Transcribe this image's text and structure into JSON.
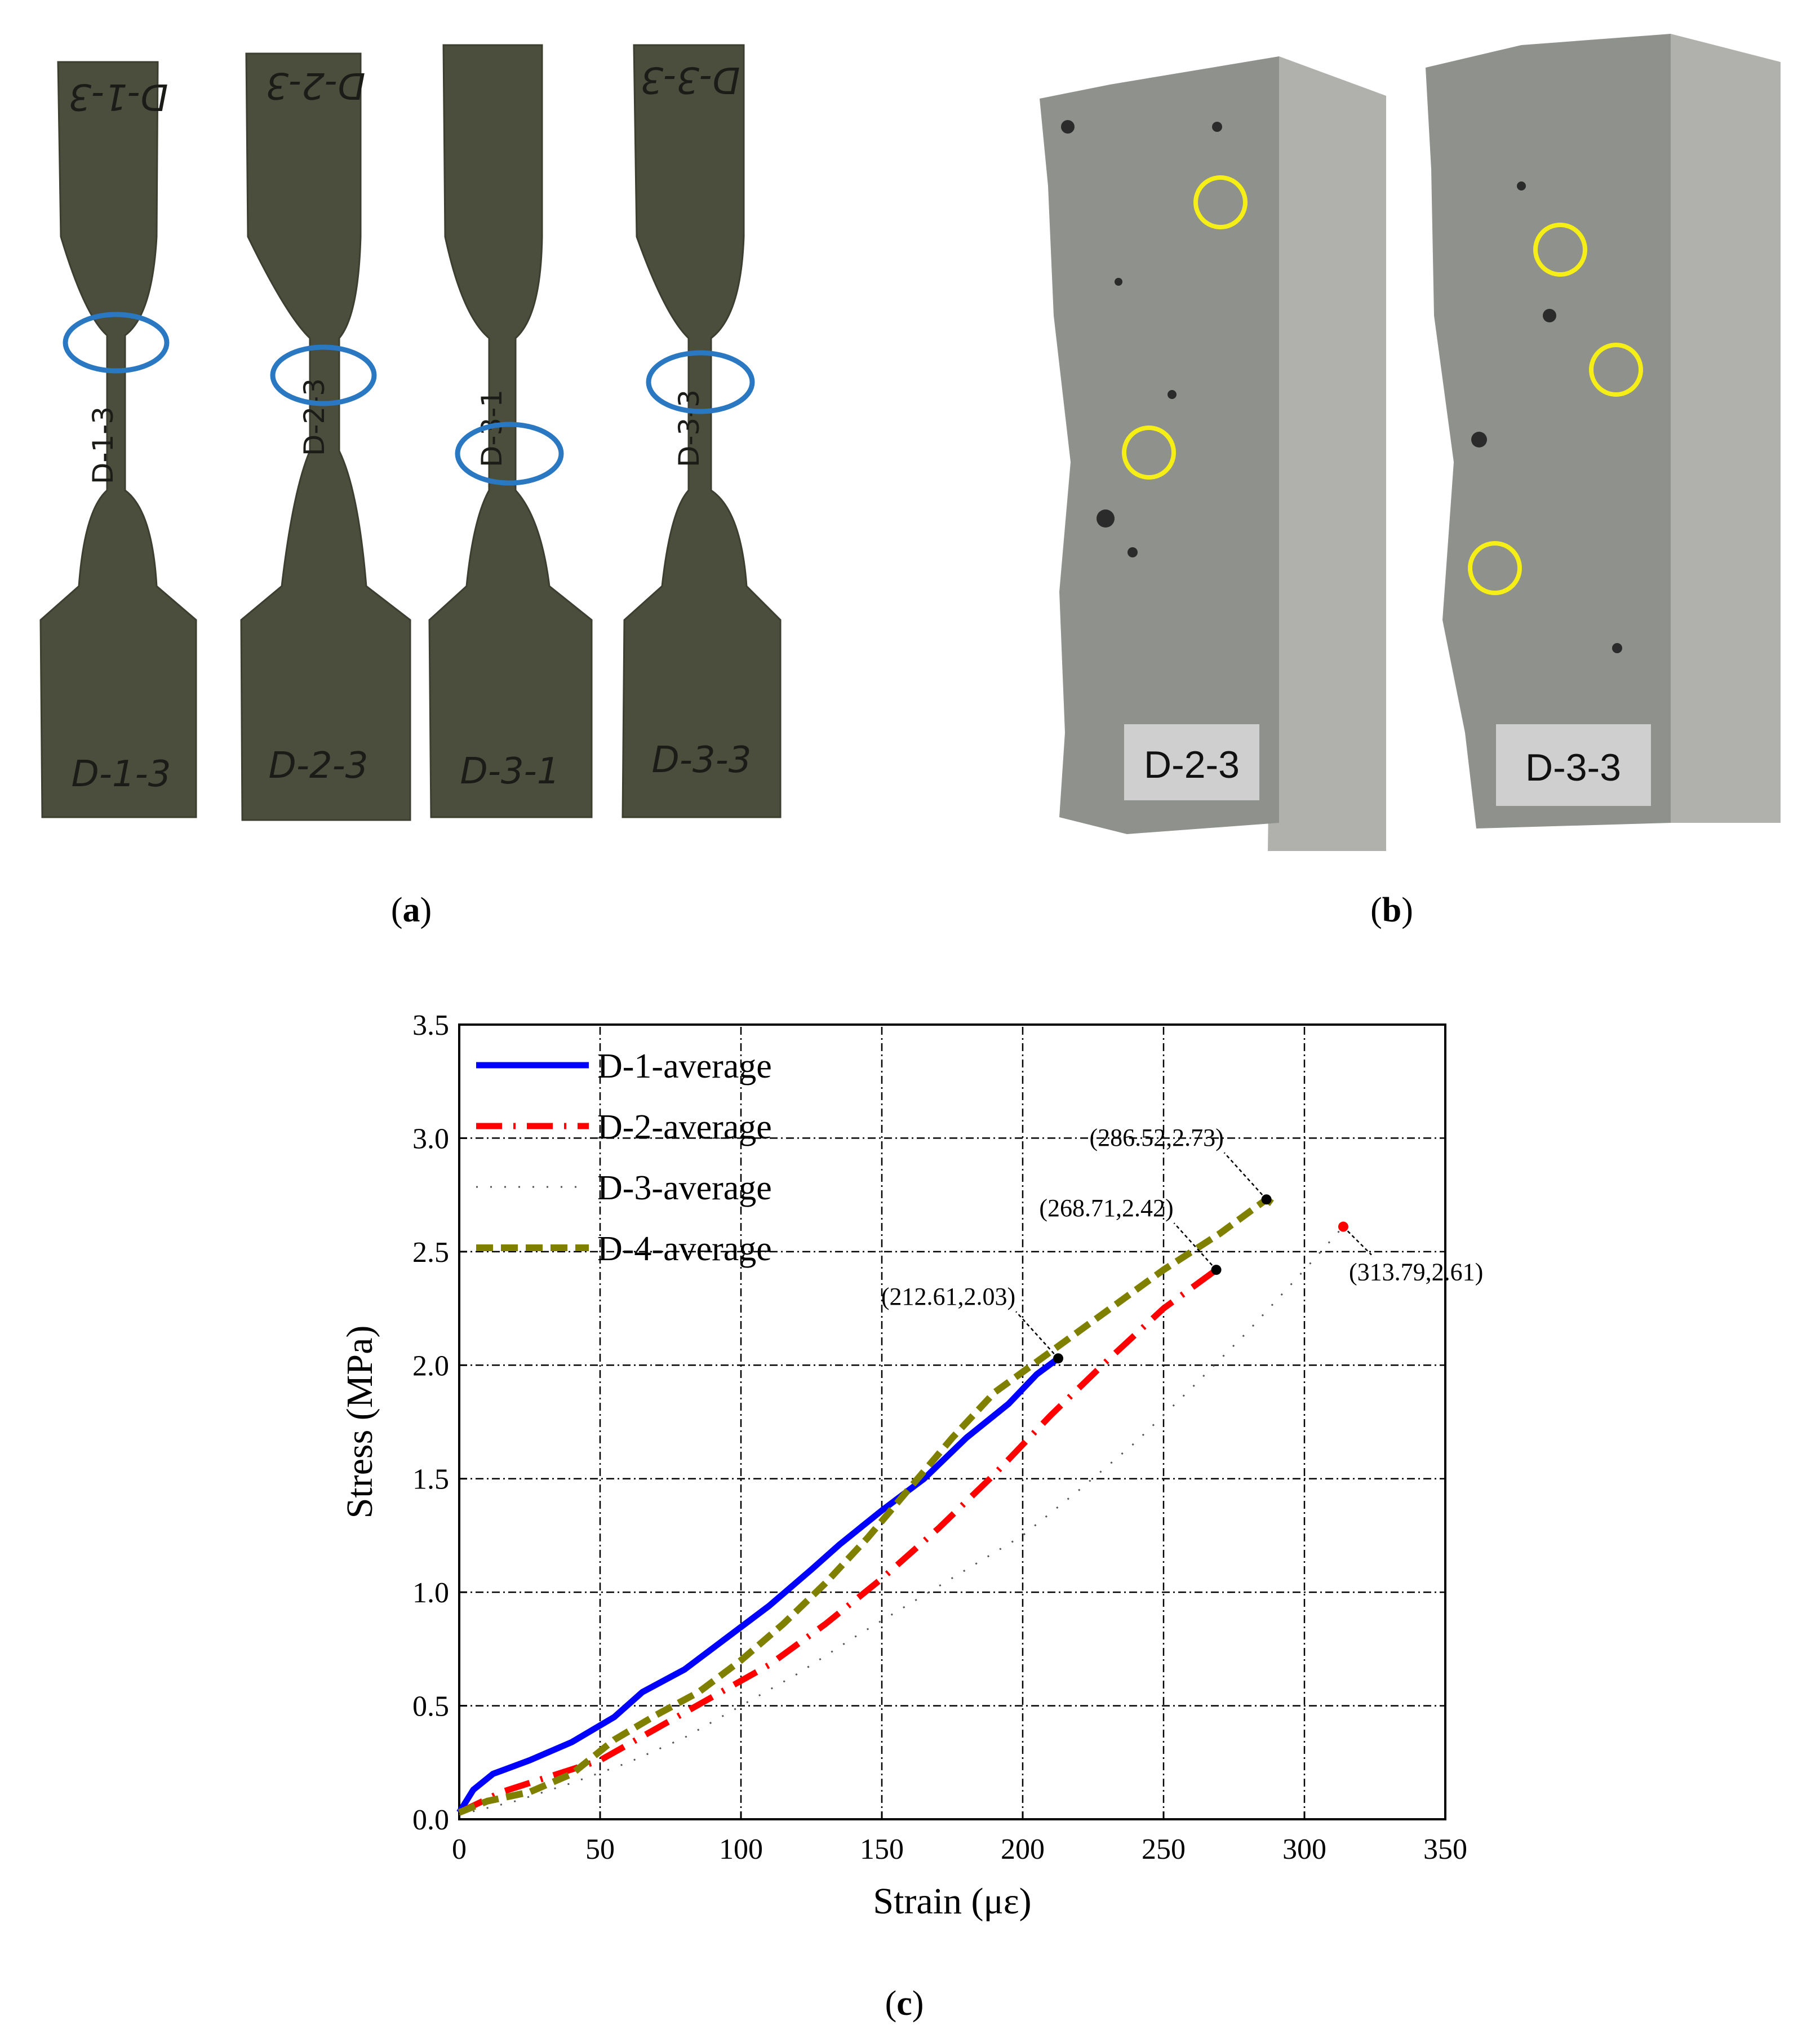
{
  "panel_a": {
    "caption_letter": "a",
    "specimen_labels": [
      "D-1-3",
      "D-2-3",
      "D-3-1",
      "D-3-3"
    ]
  },
  "panel_b": {
    "caption_letter": "b",
    "labels": [
      "D-2-3",
      "D-3-3"
    ]
  },
  "panel_c": {
    "caption_letter": "c"
  },
  "colors": {
    "specimen": "#4b4e3c",
    "concrete_face": "#8f918c",
    "concrete_side": "#b0b1ac",
    "blue_marker": "#2a78c2",
    "yellow_marker": "#f5ee17",
    "label_box": "#cfcfcf"
  },
  "chart_data": {
    "type": "line",
    "xlabel": "Strain (με)",
    "ylabel": "Stress (MPa)",
    "xlim": [
      0,
      350
    ],
    "ylim": [
      0,
      3.5
    ],
    "xticks": [
      "0",
      "50",
      "100",
      "150",
      "200",
      "250",
      "300",
      "350"
    ],
    "yticks": [
      "0.0",
      "0.5",
      "1.0",
      "1.5",
      "2.0",
      "2.5",
      "3.0",
      "3.5"
    ],
    "grid": true,
    "legend_position": "top-left",
    "series": [
      {
        "name": "D-1-average",
        "color": "#0000ff",
        "style": "solid",
        "x": [
          0,
          5,
          12,
          25,
          40,
          55,
          65,
          80,
          95,
          110,
          125,
          135,
          150,
          165,
          180,
          195,
          205,
          212.61,
          214
        ],
        "y": [
          0.03,
          0.13,
          0.2,
          0.26,
          0.34,
          0.45,
          0.56,
          0.66,
          0.8,
          0.94,
          1.1,
          1.21,
          1.36,
          1.5,
          1.68,
          1.83,
          1.96,
          2.03,
          2.03
        ]
      },
      {
        "name": "D-2-average",
        "color": "#ff0000",
        "style": "dash-dot",
        "x": [
          0,
          15,
          30,
          50,
          70,
          90,
          110,
          130,
          150,
          170,
          190,
          210,
          230,
          250,
          268.71
        ],
        "y": [
          0.03,
          0.12,
          0.18,
          0.26,
          0.4,
          0.54,
          0.68,
          0.86,
          1.06,
          1.28,
          1.52,
          1.78,
          2.02,
          2.25,
          2.42
        ]
      },
      {
        "name": "D-3-average",
        "color": "#555555",
        "style": "dotted",
        "x": [
          0,
          20,
          40,
          60,
          80,
          100,
          120,
          140,
          160,
          180,
          200,
          220,
          240,
          260,
          280,
          300,
          313.79
        ],
        "y": [
          0.02,
          0.08,
          0.16,
          0.25,
          0.36,
          0.5,
          0.64,
          0.8,
          0.95,
          1.1,
          1.25,
          1.45,
          1.66,
          1.9,
          2.15,
          2.42,
          2.61
        ]
      },
      {
        "name": "D-4-average",
        "color": "#808000",
        "style": "dashed",
        "x": [
          0,
          10,
          25,
          40,
          55,
          70,
          85,
          100,
          115,
          130,
          145,
          160,
          175,
          190,
          210,
          230,
          250,
          270,
          286.52,
          290
        ],
        "y": [
          0.03,
          0.08,
          0.12,
          0.2,
          0.35,
          0.46,
          0.56,
          0.7,
          0.86,
          1.04,
          1.24,
          1.46,
          1.68,
          1.88,
          2.06,
          2.24,
          2.42,
          2.58,
          2.73,
          2.7
        ]
      }
    ],
    "annotations": [
      {
        "text": "(212.61,2.03)",
        "x": 212.61,
        "y": 2.03,
        "dot_color": "#000000",
        "anchor": "above-left"
      },
      {
        "text": "(268.71,2.42)",
        "x": 268.71,
        "y": 2.42,
        "dot_color": "#000000",
        "anchor": "above-left"
      },
      {
        "text": "(286.52,2.73)",
        "x": 286.52,
        "y": 2.73,
        "dot_color": "#000000",
        "anchor": "above-left"
      },
      {
        "text": "(313.79,2.61)",
        "x": 313.79,
        "y": 2.61,
        "dot_color": "#ff0000",
        "anchor": "below-right"
      }
    ]
  }
}
